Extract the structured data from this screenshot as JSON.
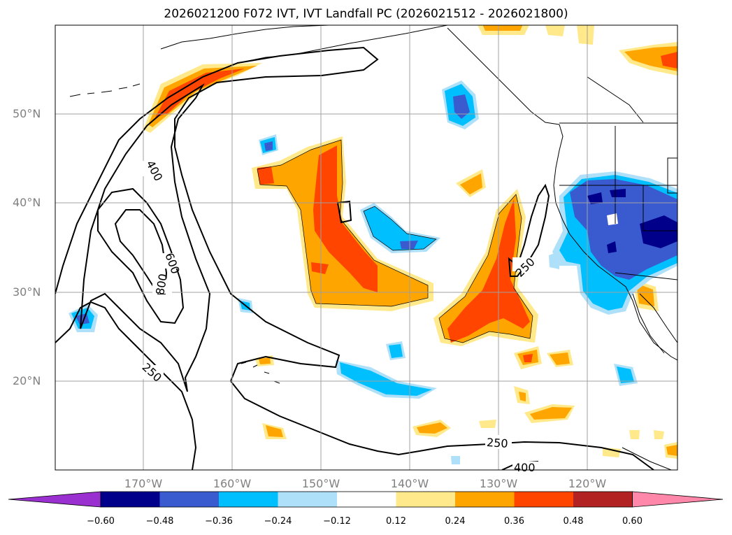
{
  "title": "2026021200 F072 IVT, IVT Landfall PC (2026021512 - 2026021800)",
  "lat_labels": [
    "50°N",
    "40°N",
    "30°N",
    "20°N"
  ],
  "lon_labels": [
    "170°W",
    "160°W",
    "150°W",
    "140°W",
    "130°W",
    "120°W"
  ],
  "contour_labels": [
    "400",
    "600",
    "800",
    "250",
    "250",
    "250",
    "400"
  ],
  "colorbar": {
    "colors": [
      "#9b30d0",
      "#00008b",
      "#3a5bd0",
      "#00bfff",
      "#aee0fa",
      "#ffffff",
      "#ffe98a",
      "#ffa500",
      "#ff4500",
      "#b22222",
      "#ff88aa"
    ],
    "tick_labels": [
      "−0.60",
      "−0.48",
      "−0.36",
      "−0.24",
      "−0.12",
      "0.12",
      "0.24",
      "0.36",
      "0.48",
      "0.60"
    ]
  },
  "palette": {
    "light_yellow": "#ffe98a",
    "orange": "#ffa500",
    "red_orange": "#ff4500",
    "light_blue": "#aee0fa",
    "sky_blue": "#00bfff",
    "mid_blue": "#3a5bd0",
    "navy": "#00008b"
  }
}
